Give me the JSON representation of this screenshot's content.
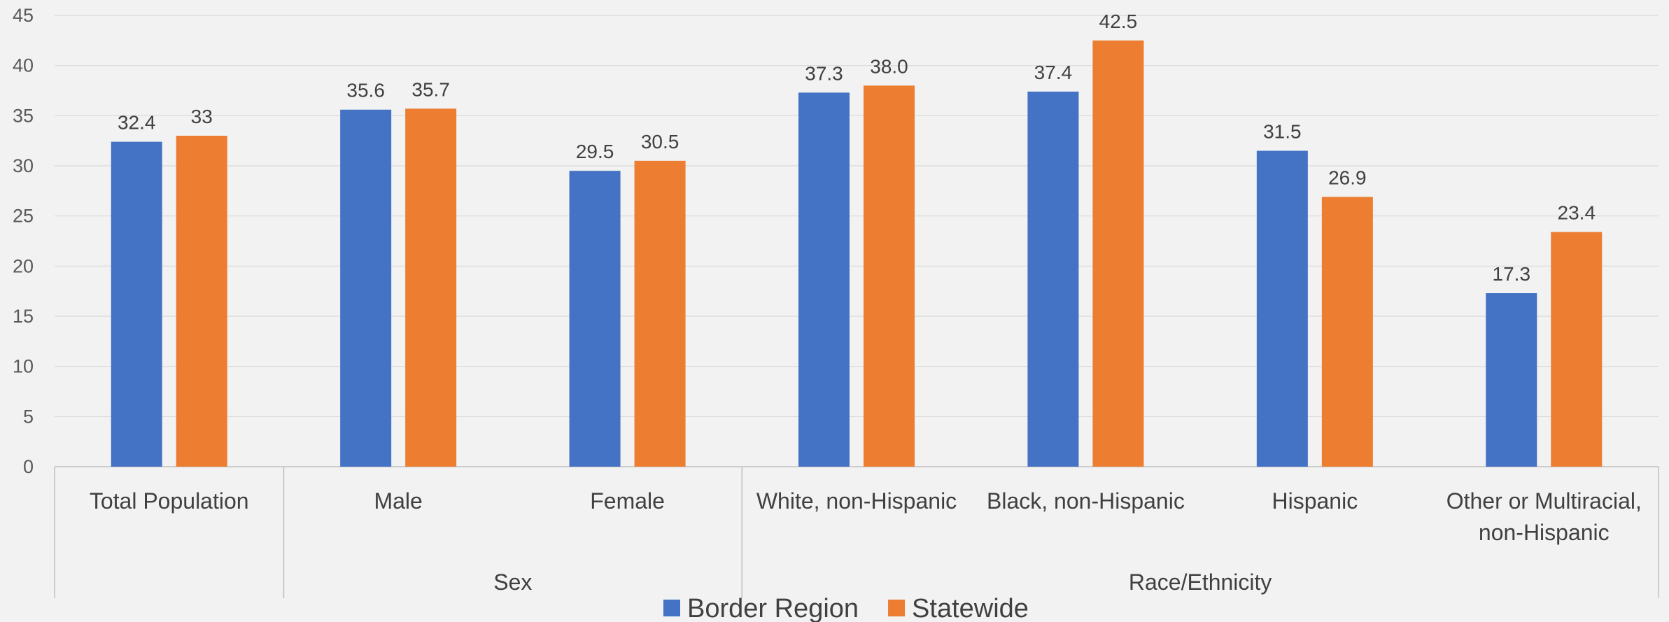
{
  "chart_data": {
    "type": "bar",
    "ylim": [
      0,
      45
    ],
    "yticks": [
      "0",
      "5",
      "10",
      "15",
      "20",
      "25",
      "30",
      "35",
      "40",
      "45"
    ],
    "categories": [
      "Total Population",
      "Male",
      "Female",
      "White, non-Hispanic",
      "Black, non-Hispanic",
      "Hispanic",
      "Other or Multiracial, non-Hispanic"
    ],
    "groups": [
      {
        "label": "",
        "categories": [
          "Total Population"
        ]
      },
      {
        "label": "Sex",
        "categories": [
          "Male",
          "Female"
        ]
      },
      {
        "label": "Race/Ethnicity",
        "categories": [
          "White, non-Hispanic",
          "Black, non-Hispanic",
          "Hispanic",
          "Other or Multiracial, non-Hispanic"
        ]
      }
    ],
    "series": [
      {
        "name": "Border Region",
        "color": "#4472c4",
        "values": [
          32.4,
          35.6,
          29.5,
          37.3,
          37.4,
          31.5,
          17.3
        ],
        "labels": [
          "32.4",
          "35.6",
          "29.5",
          "37.3",
          "37.4",
          "31.5",
          "17.3"
        ]
      },
      {
        "name": "Statewide",
        "color": "#ed7d31",
        "values": [
          33,
          35.7,
          30.5,
          38.0,
          42.5,
          26.9,
          23.4
        ],
        "labels": [
          "33",
          "35.7",
          "30.5",
          "38.0",
          "42.5",
          "26.9",
          "23.4"
        ]
      }
    ],
    "grid": true,
    "legend_position": "bottom"
  }
}
